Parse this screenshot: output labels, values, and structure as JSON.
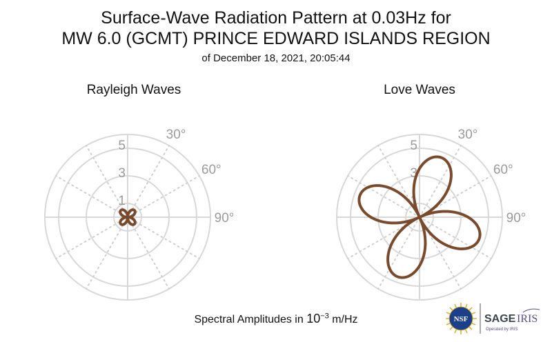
{
  "title_line1": "Surface-Wave Radiation Pattern at 0.03Hz for",
  "title_line2": "MW 6.0 (GCMT) PRINCE EDWARD ISLANDS REGION",
  "subtitle": "of December 18, 2021, 20:05:44",
  "footer": {
    "prefix": "Spectral Amplitudes in ",
    "base": "10",
    "exponent": "−3",
    "unit": " m/Hz"
  },
  "logos": {
    "nsf": "NSF",
    "sage": "SAGE",
    "iris": "IRIS",
    "operated": "Operated by IRIS"
  },
  "chart_data": [
    {
      "type": "polar",
      "title": "Rayleigh Waves",
      "r_max": 6,
      "r_ticks": [
        1,
        3,
        5
      ],
      "r_tick_labels": [
        "1",
        "3",
        "5"
      ],
      "theta_labels": [
        "30°",
        "60°",
        "90°"
      ],
      "theta_label_angles": [
        30,
        60,
        90
      ],
      "grid": true,
      "color": "#7a4a2d",
      "pattern": {
        "form": "four-lobe",
        "peak_amplitude": 0.7,
        "lobe_azimuths_deg": [
          45,
          135,
          225,
          315
        ]
      }
    },
    {
      "type": "polar",
      "title": "Love Waves",
      "r_max": 6,
      "r_ticks": [
        1,
        3,
        5
      ],
      "r_tick_labels": [
        "1",
        "3",
        "5"
      ],
      "theta_labels": [
        "30°",
        "60°",
        "90°"
      ],
      "theta_label_angles": [
        30,
        60,
        90
      ],
      "grid": true,
      "color": "#7a4a2d",
      "pattern": {
        "form": "four-lobe",
        "peak_amplitude": 4.6,
        "lobe_azimuths_deg": [
          20,
          110,
          200,
          290
        ]
      }
    }
  ]
}
